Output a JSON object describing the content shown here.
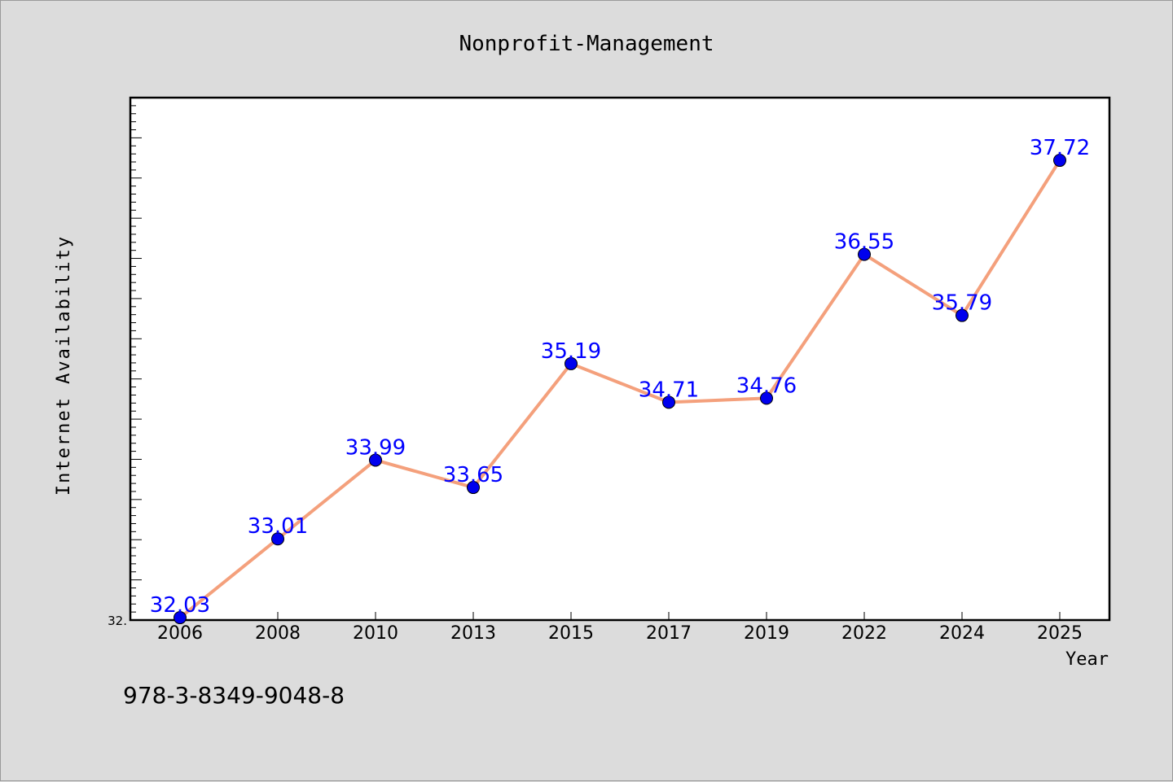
{
  "chart_data": {
    "type": "line",
    "title": "Nonprofit-Management",
    "xlabel": "Year",
    "ylabel": "Internet Availability",
    "categories": [
      "2006",
      "2008",
      "2010",
      "2013",
      "2015",
      "2017",
      "2019",
      "2022",
      "2024",
      "2025"
    ],
    "series": [
      {
        "values": [
          32.03,
          33.01,
          33.99,
          33.65,
          35.19,
          34.71,
          34.76,
          36.55,
          35.79,
          37.72
        ],
        "line_color": "#f4a07c",
        "marker_color": "#0000ee",
        "label_color": "#0000ff"
      }
    ],
    "ylim": [
      32.0,
      38.5
    ],
    "y_tick_labels": [
      "32."
    ],
    "grid": false,
    "legend": "none"
  },
  "annotation": "978-3-8349-9048-8",
  "colors": {
    "background": "#dcdcdc",
    "plot_background": "#ffffff",
    "axes": "#000000"
  }
}
